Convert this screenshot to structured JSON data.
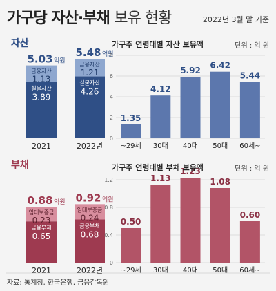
{
  "header": {
    "title_bold": "가구당 자산·부채",
    "title_light": "보유 현황",
    "date": "2022년 3월 말 기준"
  },
  "source": "자료: 통계청, 한국은행, 금융감독원",
  "colors": {
    "asset_dark": "#2f4f86",
    "asset_light": "#8ea7cf",
    "asset_bar": "#5c77ad",
    "debt_dark": "#9e3a50",
    "debt_light": "#d88e9e",
    "debt_bar": "#b25467",
    "background": "#f4f4f4"
  },
  "chart_data": [
    {
      "id": "asset_stacked",
      "type": "bar",
      "section_label": "자산",
      "unit_suffix": "억원",
      "categories": [
        "2021",
        "2022년"
      ],
      "totals": [
        5.03,
        5.48
      ],
      "series": [
        {
          "name": "실물자산",
          "values": [
            3.89,
            4.26
          ]
        },
        {
          "name": "금융자산",
          "values": [
            1.13,
            1.21
          ]
        }
      ]
    },
    {
      "id": "asset_age",
      "type": "bar",
      "title": "가구주 연령대별 자산 보유액",
      "unit": "단위 : 억 원",
      "categories": [
        "~29세",
        "30대",
        "40대",
        "50대",
        "60세~"
      ],
      "values": [
        1.35,
        4.12,
        5.92,
        6.42,
        5.44
      ],
      "ylim": [
        0,
        8
      ],
      "yticks": [
        0,
        2,
        4,
        6,
        8
      ],
      "grid": true
    },
    {
      "id": "debt_stacked",
      "type": "bar",
      "section_label": "부채",
      "unit_suffix": "억원",
      "categories": [
        "2021",
        "2022년"
      ],
      "totals": [
        0.88,
        0.92
      ],
      "series": [
        {
          "name": "금융부채",
          "values": [
            0.65,
            0.68
          ]
        },
        {
          "name": "임대보증금",
          "values": [
            0.23,
            0.24
          ]
        }
      ]
    },
    {
      "id": "debt_age",
      "type": "bar",
      "title": "가구주 연령대별 부채 보유액",
      "unit": "단위 : 억 원",
      "categories": [
        "~29세",
        "30대",
        "40대",
        "50대",
        "60세~"
      ],
      "values": [
        0.5,
        1.13,
        1.23,
        1.08,
        0.6
      ],
      "ylim": [
        0,
        1.2
      ],
      "yticks": [
        0,
        0.4,
        0.8,
        1.2
      ],
      "grid": true
    }
  ]
}
